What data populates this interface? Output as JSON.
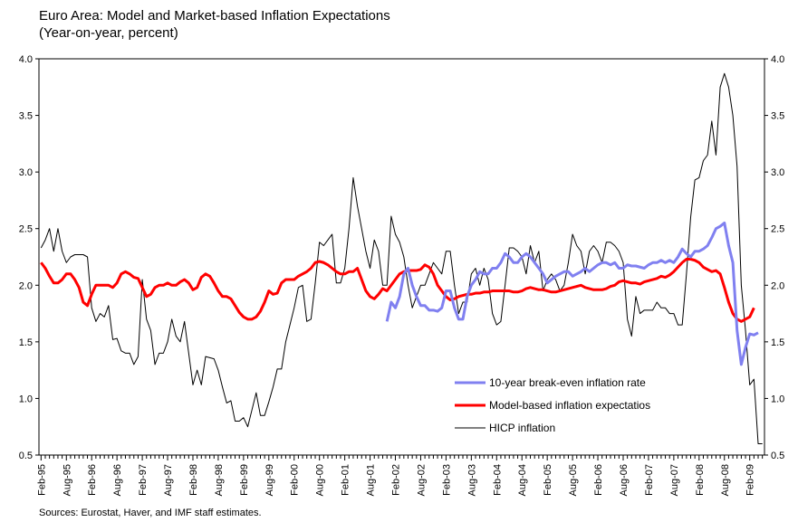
{
  "chart_data": {
    "type": "line",
    "title": "Euro Area: Model and Market-based Inflation Expectations",
    "subtitle": "(Year-on-year, percent)",
    "source": "Sources: Eurostat, Haver, and IMF staff estimates.",
    "categories": [
      "Feb-95",
      null,
      null,
      null,
      null,
      null,
      "Aug-95",
      null,
      null,
      null,
      null,
      null,
      "Feb-96",
      null,
      null,
      null,
      null,
      null,
      "Aug-96",
      null,
      null,
      null,
      null,
      null,
      "Feb-97",
      null,
      null,
      null,
      null,
      null,
      "Aug-97",
      null,
      null,
      null,
      null,
      null,
      "Feb-98",
      null,
      null,
      null,
      null,
      null,
      "Aug-98",
      null,
      null,
      null,
      null,
      null,
      "Feb-99",
      null,
      null,
      null,
      null,
      null,
      "Aug-99",
      null,
      null,
      null,
      null,
      null,
      "Feb-00",
      null,
      null,
      null,
      null,
      null,
      "Aug-00",
      null,
      null,
      null,
      null,
      null,
      "Feb-01",
      null,
      null,
      null,
      null,
      null,
      "Aug-01",
      null,
      null,
      null,
      null,
      null,
      "Feb-02",
      null,
      null,
      null,
      null,
      null,
      "Aug-02",
      null,
      null,
      null,
      null,
      null,
      "Feb-03",
      null,
      null,
      null,
      null,
      null,
      "Aug-03",
      null,
      null,
      null,
      null,
      null,
      "Feb-04",
      null,
      null,
      null,
      null,
      null,
      "Aug-04",
      null,
      null,
      null,
      null,
      null,
      "Feb-05",
      null,
      null,
      null,
      null,
      null,
      "Aug-05",
      null,
      null,
      null,
      null,
      null,
      "Feb-06",
      null,
      null,
      null,
      null,
      null,
      "Aug-06",
      null,
      null,
      null,
      null,
      null,
      "Feb-07",
      null,
      null,
      null,
      null,
      null,
      "Aug-07",
      null,
      null,
      null,
      null,
      null,
      "Feb-08",
      null,
      null,
      null,
      null,
      null,
      "Aug-08",
      null,
      null,
      null,
      null,
      null,
      "Feb-09",
      null,
      null,
      null
    ],
    "series": [
      {
        "name": "10-year break-even inflation rate",
        "color": "#8080f0",
        "width": 3,
        "values": [
          null,
          null,
          null,
          null,
          null,
          null,
          null,
          null,
          null,
          null,
          null,
          null,
          null,
          null,
          null,
          null,
          null,
          null,
          null,
          null,
          null,
          null,
          null,
          null,
          null,
          null,
          null,
          null,
          null,
          null,
          null,
          null,
          null,
          null,
          null,
          null,
          null,
          null,
          null,
          null,
          null,
          null,
          null,
          null,
          null,
          null,
          null,
          null,
          null,
          null,
          null,
          null,
          null,
          null,
          null,
          null,
          null,
          null,
          null,
          null,
          null,
          null,
          null,
          null,
          null,
          null,
          null,
          null,
          null,
          null,
          null,
          null,
          null,
          null,
          null,
          null,
          null,
          null,
          null,
          null,
          null,
          null,
          1.68,
          1.85,
          1.8,
          1.9,
          2.1,
          2.15,
          2.0,
          1.9,
          1.82,
          1.82,
          1.78,
          1.78,
          1.77,
          1.8,
          1.95,
          1.95,
          1.8,
          1.7,
          1.7,
          1.9,
          2.0,
          2.05,
          2.12,
          2.1,
          2.1,
          2.15,
          2.15,
          2.2,
          2.28,
          2.25,
          2.2,
          2.2,
          2.25,
          2.28,
          2.25,
          2.2,
          2.15,
          2.1,
          2.02,
          2.05,
          2.08,
          2.1,
          2.12,
          2.12,
          2.08,
          2.1,
          2.12,
          2.15,
          2.12,
          2.15,
          2.18,
          2.2,
          2.2,
          2.18,
          2.2,
          2.15,
          2.15,
          2.18,
          2.17,
          2.17,
          2.16,
          2.15,
          2.18,
          2.2,
          2.2,
          2.22,
          2.2,
          2.22,
          2.2,
          2.25,
          2.32,
          2.28,
          2.25,
          2.3,
          2.3,
          2.32,
          2.35,
          2.42,
          2.5,
          2.52,
          2.55,
          2.35,
          2.2,
          1.6,
          1.3,
          1.45,
          1.57,
          1.56,
          1.58,
          null
        ]
      },
      {
        "name": "Model-based inflation expectatios",
        "color": "#ff0000",
        "width": 3,
        "values": [
          2.2,
          2.15,
          2.08,
          2.02,
          2.02,
          2.05,
          2.1,
          2.1,
          2.05,
          1.98,
          1.85,
          1.82,
          1.92,
          2.0,
          2.0,
          2.0,
          2.0,
          1.98,
          2.02,
          2.1,
          2.12,
          2.1,
          2.07,
          2.06,
          1.98,
          1.9,
          1.92,
          1.98,
          2.0,
          2.0,
          2.02,
          2.0,
          2.0,
          2.03,
          2.05,
          2.02,
          1.96,
          1.98,
          2.07,
          2.1,
          2.08,
          2.02,
          1.95,
          1.9,
          1.9,
          1.88,
          1.82,
          1.76,
          1.72,
          1.7,
          1.7,
          1.72,
          1.77,
          1.85,
          1.95,
          1.92,
          1.93,
          2.02,
          2.05,
          2.05,
          2.05,
          2.08,
          2.1,
          2.12,
          2.15,
          2.2,
          2.21,
          2.2,
          2.18,
          2.15,
          2.12,
          2.1,
          2.1,
          2.12,
          2.12,
          2.15,
          2.05,
          1.95,
          1.9,
          1.88,
          1.92,
          1.97,
          1.95,
          2.0,
          2.05,
          2.1,
          2.12,
          2.13,
          2.13,
          2.13,
          2.14,
          2.18,
          2.16,
          2.1,
          2.0,
          1.95,
          1.9,
          1.87,
          1.88,
          1.9,
          1.91,
          1.92,
          1.92,
          1.93,
          1.93,
          1.94,
          1.94,
          1.95,
          1.95,
          1.95,
          1.95,
          1.95,
          1.94,
          1.94,
          1.95,
          1.97,
          1.98,
          1.97,
          1.96,
          1.96,
          1.95,
          1.94,
          1.94,
          1.95,
          1.96,
          1.97,
          1.98,
          1.99,
          2.0,
          1.98,
          1.97,
          1.96,
          1.96,
          1.96,
          1.97,
          1.99,
          2.0,
          2.03,
          2.04,
          2.03,
          2.02,
          2.02,
          2.01,
          2.03,
          2.04,
          2.05,
          2.06,
          2.08,
          2.07,
          2.09,
          2.12,
          2.16,
          2.2,
          2.23,
          2.23,
          2.22,
          2.2,
          2.16,
          2.14,
          2.12,
          2.13,
          2.1,
          1.98,
          1.85,
          1.75,
          1.7,
          1.68,
          1.7,
          1.72,
          1.8,
          null,
          null
        ]
      },
      {
        "name": "HICP inflation",
        "color": "#000000",
        "width": 1,
        "values": [
          2.33,
          2.4,
          2.5,
          2.3,
          2.5,
          2.3,
          2.2,
          2.25,
          2.27,
          2.27,
          2.27,
          2.25,
          1.8,
          1.68,
          1.75,
          1.72,
          1.82,
          1.52,
          1.53,
          1.42,
          1.4,
          1.4,
          1.3,
          1.37,
          2.05,
          1.7,
          1.6,
          1.3,
          1.4,
          1.4,
          1.5,
          1.7,
          1.55,
          1.5,
          1.68,
          1.4,
          1.12,
          1.25,
          1.12,
          1.37,
          1.36,
          1.35,
          1.25,
          1.1,
          0.96,
          0.98,
          0.8,
          0.8,
          0.83,
          0.75,
          0.9,
          1.05,
          0.85,
          0.85,
          0.97,
          1.1,
          1.26,
          1.26,
          1.5,
          1.65,
          1.8,
          1.98,
          2.0,
          1.68,
          1.7,
          2.02,
          2.38,
          2.35,
          2.4,
          2.45,
          2.02,
          2.02,
          2.15,
          2.5,
          2.95,
          2.7,
          2.5,
          2.3,
          2.15,
          2.4,
          2.3,
          2.0,
          2.0,
          2.61,
          2.45,
          2.38,
          2.25,
          2.0,
          1.8,
          1.9,
          2.0,
          2.0,
          2.1,
          2.2,
          2.15,
          2.1,
          2.3,
          2.3,
          2.0,
          1.75,
          1.85,
          1.85,
          2.1,
          2.15,
          2.0,
          2.15,
          2.05,
          1.75,
          1.65,
          1.68,
          2.0,
          2.33,
          2.33,
          2.3,
          2.25,
          2.1,
          2.35,
          2.2,
          2.3,
          1.95,
          2.05,
          2.1,
          2.05,
          1.95,
          2.0,
          2.2,
          2.45,
          2.35,
          2.3,
          2.1,
          2.3,
          2.35,
          2.3,
          2.2,
          2.38,
          2.38,
          2.35,
          2.3,
          2.2,
          1.7,
          1.55,
          1.9,
          1.75,
          1.78,
          1.78,
          1.78,
          1.85,
          1.8,
          1.8,
          1.75,
          1.75,
          1.65,
          1.65,
          2.1,
          2.6,
          2.93,
          2.95,
          3.1,
          3.15,
          3.45,
          3.15,
          3.75,
          3.87,
          3.75,
          3.5,
          3.05,
          2.0,
          1.6,
          1.12,
          1.17,
          0.6,
          0.6
        ]
      }
    ],
    "ylim": [
      0.5,
      4.0
    ],
    "yticks": [
      0.5,
      {
        "value": 1,
        "label": "1.0"
      },
      1.5,
      {
        "value": 2,
        "label": "2.0"
      },
      2.5,
      {
        "value": 3,
        "label": "3.0"
      },
      3.5,
      {
        "value": 4,
        "label": "4.0"
      }
    ],
    "legend": "lower-right"
  }
}
